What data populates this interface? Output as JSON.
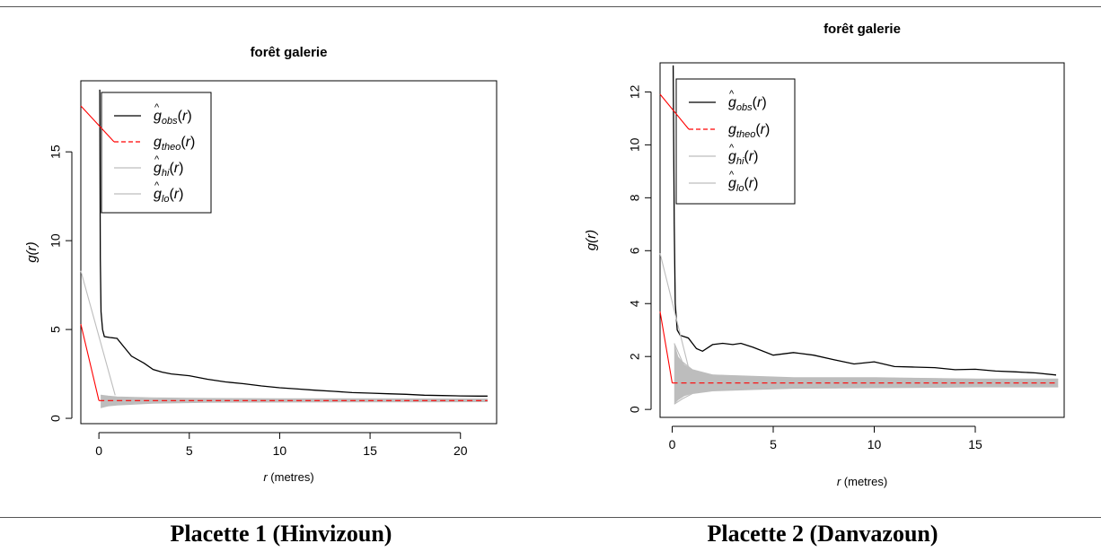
{
  "captions": [
    "Placette 1 (Hinvizoun)",
    "Placette 2 (Danvazoun)"
  ],
  "chart_data": [
    {
      "type": "line",
      "title": "forêt galerie",
      "xlabel_var": "r",
      "xlabel_unit": "(metres)",
      "ylabel": "g(r)",
      "xlim": [
        -1,
        22
      ],
      "ylim": [
        -0.3,
        19
      ],
      "xticks": [
        0,
        5,
        10,
        15,
        20
      ],
      "yticks": [
        0,
        5,
        10,
        15
      ],
      "legend_position": "top-left",
      "series": [
        {
          "name": "ĝobs(r)",
          "base": "g",
          "hat": true,
          "sub": "obs",
          "color": "#000000",
          "dash": "",
          "points": [
            [
              0.05,
              18.5
            ],
            [
              0.08,
              9
            ],
            [
              0.12,
              6
            ],
            [
              0.2,
              5
            ],
            [
              0.3,
              4.6
            ],
            [
              0.6,
              4.55
            ],
            [
              1,
              4.5
            ],
            [
              1.4,
              4.0
            ],
            [
              1.8,
              3.5
            ],
            [
              2.5,
              3.1
            ],
            [
              3,
              2.75
            ],
            [
              3.5,
              2.6
            ],
            [
              4,
              2.5
            ],
            [
              5,
              2.4
            ],
            [
              6,
              2.2
            ],
            [
              7,
              2.05
            ],
            [
              8,
              1.95
            ],
            [
              9,
              1.82
            ],
            [
              10,
              1.72
            ],
            [
              11,
              1.65
            ],
            [
              12,
              1.58
            ],
            [
              13,
              1.52
            ],
            [
              14,
              1.45
            ],
            [
              15,
              1.42
            ],
            [
              16,
              1.38
            ],
            [
              17,
              1.35
            ],
            [
              18,
              1.3
            ],
            [
              19,
              1.28
            ],
            [
              20,
              1.26
            ],
            [
              21,
              1.25
            ],
            [
              21.5,
              1.25
            ]
          ]
        },
        {
          "name": "gtheo(r)",
          "base": "g",
          "hat": false,
          "sub": "theo",
          "color": "#ff0000",
          "dash": "6,4",
          "points": [
            [
              0,
              1
            ],
            [
              21.5,
              1
            ]
          ]
        },
        {
          "name": "ĝhi(r)",
          "base": "g",
          "hat": true,
          "sub": "hi",
          "color": "#bdbdbd",
          "dash": "",
          "points": [
            [
              0.1,
              1.3
            ],
            [
              0.5,
              1.25
            ],
            [
              1,
              1.2
            ],
            [
              3,
              1.15
            ],
            [
              6,
              1.12
            ],
            [
              10,
              1.1
            ],
            [
              15,
              1.1
            ],
            [
              21.5,
              1.08
            ]
          ]
        },
        {
          "name": "ĝlo(r)",
          "base": "g",
          "hat": true,
          "sub": "lo",
          "color": "#bdbdbd",
          "dash": "",
          "points": [
            [
              0.1,
              0.6
            ],
            [
              0.5,
              0.7
            ],
            [
              1,
              0.75
            ],
            [
              3,
              0.85
            ],
            [
              6,
              0.9
            ],
            [
              10,
              0.92
            ],
            [
              15,
              0.93
            ],
            [
              21.5,
              0.94
            ]
          ]
        }
      ],
      "envelope": {
        "color": "#bdbdbd",
        "x": [
          0.1,
          0.5,
          1,
          2,
          3,
          5,
          8,
          12,
          16,
          21.5
        ],
        "hi": [
          1.3,
          1.25,
          1.2,
          1.15,
          1.12,
          1.1,
          1.1,
          1.1,
          1.08,
          1.08
        ],
        "lo": [
          0.6,
          0.7,
          0.75,
          0.82,
          0.86,
          0.9,
          0.92,
          0.93,
          0.93,
          0.94
        ]
      }
    },
    {
      "type": "line",
      "title": "forêt galerie",
      "xlabel_var": "r",
      "xlabel_unit": "(metres)",
      "ylabel": "g(r)",
      "xlim": [
        -0.6,
        19.4
      ],
      "ylim": [
        -0.3,
        13.1
      ],
      "xticks": [
        0,
        5,
        10,
        15
      ],
      "yticks": [
        0,
        2,
        4,
        6,
        8,
        10,
        12
      ],
      "legend_position": "top-left",
      "series": [
        {
          "name": "ĝobs(r)",
          "base": "g",
          "hat": true,
          "sub": "obs",
          "color": "#000000",
          "dash": "",
          "points": [
            [
              0.05,
              13
            ],
            [
              0.1,
              7
            ],
            [
              0.15,
              4
            ],
            [
              0.25,
              3
            ],
            [
              0.4,
              2.8
            ],
            [
              0.8,
              2.7
            ],
            [
              1.2,
              2.3
            ],
            [
              1.5,
              2.2
            ],
            [
              2,
              2.45
            ],
            [
              2.5,
              2.5
            ],
            [
              3,
              2.45
            ],
            [
              3.4,
              2.5
            ],
            [
              4,
              2.35
            ],
            [
              5,
              2.05
            ],
            [
              6,
              2.15
            ],
            [
              7,
              2.05
            ],
            [
              8,
              1.88
            ],
            [
              9,
              1.72
            ],
            [
              10,
              1.8
            ],
            [
              11,
              1.62
            ],
            [
              12,
              1.6
            ],
            [
              13,
              1.58
            ],
            [
              14,
              1.5
            ],
            [
              15,
              1.52
            ],
            [
              16,
              1.45
            ],
            [
              17,
              1.42
            ],
            [
              18,
              1.38
            ],
            [
              19,
              1.3
            ]
          ]
        },
        {
          "name": "gtheo(r)",
          "base": "g",
          "hat": false,
          "sub": "theo",
          "color": "#ff0000",
          "dash": "6,4",
          "points": [
            [
              0,
              1
            ],
            [
              19.1,
              1
            ]
          ]
        },
        {
          "name": "ĝhi(r)",
          "base": "g",
          "hat": true,
          "sub": "hi",
          "color": "#bdbdbd",
          "dash": "",
          "points": [
            [
              0.1,
              2.5
            ],
            [
              0.5,
              1.8
            ],
            [
              1,
              1.5
            ],
            [
              2,
              1.3
            ],
            [
              4,
              1.25
            ],
            [
              6,
              1.2
            ],
            [
              10,
              1.2
            ],
            [
              15,
              1.15
            ],
            [
              19.1,
              1.15
            ]
          ]
        },
        {
          "name": "ĝlo(r)",
          "base": "g",
          "hat": true,
          "sub": "lo",
          "color": "#bdbdbd",
          "dash": "",
          "points": [
            [
              0.1,
              0.2
            ],
            [
              0.5,
              0.4
            ],
            [
              1,
              0.6
            ],
            [
              2,
              0.7
            ],
            [
              4,
              0.75
            ],
            [
              6,
              0.8
            ],
            [
              10,
              0.82
            ],
            [
              15,
              0.85
            ],
            [
              19.1,
              0.85
            ]
          ]
        }
      ],
      "envelope": {
        "color": "#bdbdbd",
        "x": [
          0.1,
          0.3,
          0.6,
          1,
          1.5,
          2,
          3,
          4,
          6,
          8,
          10,
          13,
          16,
          19.1
        ],
        "hi": [
          2.5,
          2.0,
          1.7,
          1.5,
          1.4,
          1.32,
          1.28,
          1.25,
          1.2,
          1.2,
          1.2,
          1.18,
          1.15,
          1.15
        ],
        "lo": [
          0.2,
          0.35,
          0.5,
          0.6,
          0.65,
          0.7,
          0.72,
          0.75,
          0.8,
          0.8,
          0.82,
          0.84,
          0.85,
          0.85
        ]
      }
    }
  ]
}
